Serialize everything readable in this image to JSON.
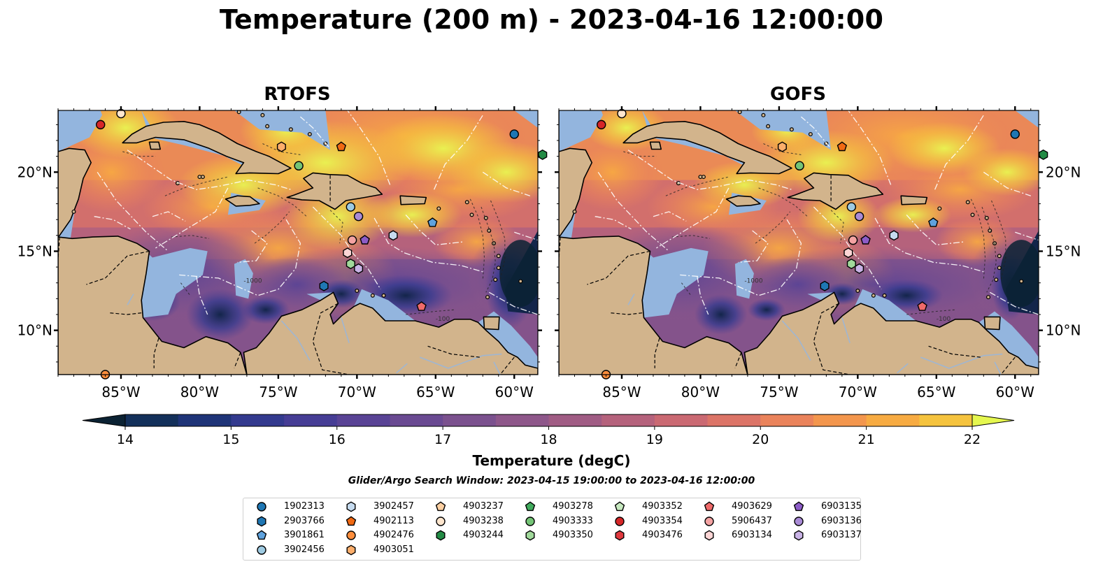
{
  "title": "Temperature (200 m) - 2023-04-16 12:00:00",
  "panels": [
    {
      "title": "RTOFS"
    },
    {
      "title": "GOFS"
    }
  ],
  "axes": {
    "lon_ticks": [
      "85°W",
      "80°W",
      "75°W",
      "70°W",
      "65°W",
      "60°W"
    ],
    "lat_ticks": [
      "20°N",
      "15°N",
      "10°N"
    ]
  },
  "contour_labels": {
    "c1000": "-1000",
    "c100": "-100"
  },
  "colorbar": {
    "label": "Temperature (degC)",
    "min": 14,
    "max": 22,
    "step": 0.5,
    "ticks": [
      "14",
      "15",
      "16",
      "17",
      "18",
      "19",
      "20",
      "21",
      "22"
    ],
    "colors": [
      "#0b2233",
      "#13305a",
      "#1f3478",
      "#333a8e",
      "#463d95",
      "#594395",
      "#6a4a92",
      "#7b518e",
      "#8e578a",
      "#a05c84",
      "#b5627c",
      "#ca6972",
      "#dc7467",
      "#ea835b",
      "#f3964d",
      "#f7ab42",
      "#f5c33e",
      "#f1dd46",
      "#e5f74f"
    ]
  },
  "search_window": "Glider/Argo Search Window: 2023-04-15 19:00:00 to 2023-04-16 12:00:00",
  "floats": [
    {
      "id": "1902313",
      "color": "#1f77b4",
      "marker": "circle"
    },
    {
      "id": "2903766",
      "color": "#1f77b4",
      "marker": "hexagon"
    },
    {
      "id": "3901861",
      "color": "#5fa2dd",
      "marker": "pentagon"
    },
    {
      "id": "3902456",
      "color": "#9ecae1",
      "marker": "circle"
    },
    {
      "id": "3902457",
      "color": "#c6dbef",
      "marker": "hexagon"
    },
    {
      "id": "4902113",
      "color": "#f16913",
      "marker": "pentagon"
    },
    {
      "id": "4902476",
      "color": "#fd8d3c",
      "marker": "circle"
    },
    {
      "id": "4903051",
      "color": "#fdae6b",
      "marker": "hexagon"
    },
    {
      "id": "4903237",
      "color": "#fdd0a2",
      "marker": "pentagon"
    },
    {
      "id": "4903238",
      "color": "#fee6ce",
      "marker": "circle"
    },
    {
      "id": "4903244",
      "color": "#238b45",
      "marker": "hexagon"
    },
    {
      "id": "4903278",
      "color": "#41ab5d",
      "marker": "pentagon"
    },
    {
      "id": "4903333",
      "color": "#74c476",
      "marker": "circle"
    },
    {
      "id": "4903350",
      "color": "#a1d99b",
      "marker": "hexagon"
    },
    {
      "id": "4903352",
      "color": "#c7e9c0",
      "marker": "pentagon"
    },
    {
      "id": "4903354",
      "color": "#d62728",
      "marker": "circle"
    },
    {
      "id": "4903476",
      "color": "#e0393e",
      "marker": "hexagon"
    },
    {
      "id": "4903629",
      "color": "#ef6a6a",
      "marker": "pentagon"
    },
    {
      "id": "5906437",
      "color": "#f4a3a3",
      "marker": "circle"
    },
    {
      "id": "6903134",
      "color": "#fcd5d5",
      "marker": "hexagon"
    },
    {
      "id": "6903135",
      "color": "#8c5cc7",
      "marker": "pentagon"
    },
    {
      "id": "6903136",
      "color": "#a98bd6",
      "marker": "circle"
    },
    {
      "id": "6903137",
      "color": "#c9b3e6",
      "marker": "hexagon"
    }
  ],
  "observations": [
    {
      "id": "1902313",
      "lon": -60.0,
      "lat": 22.4
    },
    {
      "id": "4903244",
      "lon": -58.2,
      "lat": 21.1
    },
    {
      "id": "4903354",
      "lon": -86.3,
      "lat": 23.0
    },
    {
      "id": "4903238",
      "lon": -85.0,
      "lat": 23.7
    },
    {
      "id": "4903051",
      "lon": -74.8,
      "lat": 21.6
    },
    {
      "id": "4902113",
      "lon": -71.0,
      "lat": 21.6
    },
    {
      "id": "4903333",
      "lon": -73.7,
      "lat": 20.4
    },
    {
      "id": "3902456",
      "lon": -70.4,
      "lat": 17.8
    },
    {
      "id": "6903136",
      "lon": -69.9,
      "lat": 17.2
    },
    {
      "id": "3901861",
      "lon": -65.2,
      "lat": 16.8
    },
    {
      "id": "3902457",
      "lon": -67.7,
      "lat": 16.0
    },
    {
      "id": "6903135",
      "lon": -69.5,
      "lat": 15.7
    },
    {
      "id": "5906437",
      "lon": -70.3,
      "lat": 15.7
    },
    {
      "id": "6903134",
      "lon": -70.6,
      "lat": 14.9
    },
    {
      "id": "4903350",
      "lon": -70.4,
      "lat": 14.2
    },
    {
      "id": "6903137",
      "lon": -69.9,
      "lat": 13.9
    },
    {
      "id": "2903766",
      "lon": -72.1,
      "lat": 12.8
    },
    {
      "id": "4903629",
      "lon": -65.9,
      "lat": 11.5
    },
    {
      "id": "4902476",
      "lon": -86.0,
      "lat": 7.2
    }
  ]
}
